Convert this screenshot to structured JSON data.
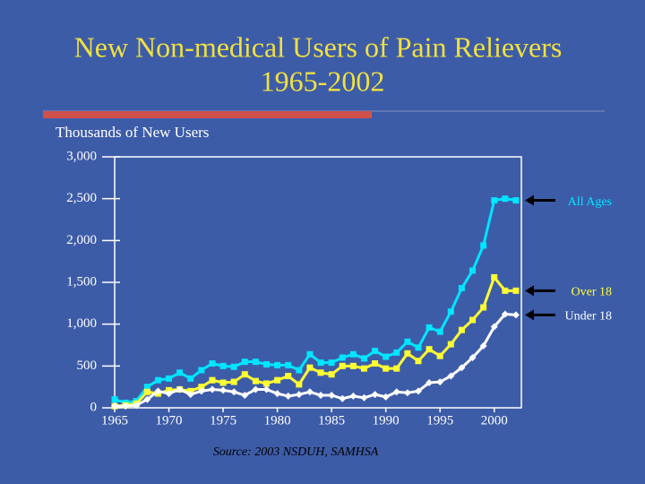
{
  "chart_data": {
    "type": "line",
    "title": "New Non-medical Users of Pain Relievers",
    "subtitle": "1965-2002",
    "y_label": "Thousands of New Users",
    "source": "Source: 2003 NSDUH, SAMHSA",
    "x": [
      1965,
      1966,
      1967,
      1968,
      1969,
      1970,
      1971,
      1972,
      1973,
      1974,
      1975,
      1976,
      1977,
      1978,
      1979,
      1980,
      1981,
      1982,
      1983,
      1984,
      1985,
      1986,
      1987,
      1988,
      1989,
      1990,
      1991,
      1992,
      1993,
      1994,
      1995,
      1996,
      1997,
      1998,
      1999,
      2000,
      2001,
      2002
    ],
    "series": [
      {
        "name": "All Ages",
        "color": "#00e5ff",
        "marker": "square",
        "values": [
          100,
          60,
          80,
          250,
          330,
          350,
          420,
          350,
          450,
          530,
          500,
          490,
          550,
          550,
          520,
          510,
          510,
          450,
          640,
          540,
          540,
          600,
          640,
          590,
          680,
          610,
          660,
          790,
          720,
          960,
          910,
          1150,
          1430,
          1640,
          1940,
          2480,
          2500,
          2480
        ]
      },
      {
        "name": "Over 18",
        "color": "#ffff33",
        "marker": "square",
        "values": [
          20,
          30,
          50,
          190,
          170,
          210,
          220,
          200,
          250,
          330,
          300,
          310,
          400,
          320,
          290,
          330,
          380,
          280,
          480,
          420,
          400,
          500,
          500,
          470,
          530,
          470,
          470,
          650,
          560,
          700,
          620,
          760,
          930,
          1050,
          1200,
          1560,
          1400,
          1400
        ]
      },
      {
        "name": "Under 18",
        "color": "#ffffff",
        "marker": "diamond",
        "values": [
          20,
          20,
          30,
          100,
          200,
          170,
          220,
          160,
          200,
          220,
          210,
          190,
          150,
          220,
          220,
          170,
          140,
          160,
          190,
          150,
          150,
          110,
          140,
          120,
          160,
          130,
          190,
          180,
          200,
          300,
          310,
          380,
          480,
          600,
          740,
          970,
          1120,
          1110
        ]
      }
    ],
    "xlim": [
      1965,
      2002.5
    ],
    "xticks": [
      1965,
      1970,
      1975,
      1980,
      1985,
      1990,
      1995,
      2000
    ],
    "ylim": [
      0,
      3000
    ],
    "yticks": [
      0,
      {
        "value": 500,
        "label": "500"
      },
      {
        "value": 1000,
        "label": "1,000"
      },
      {
        "value": 1500,
        "label": "1,500"
      },
      {
        "value": 2000,
        "label": "2,000"
      },
      {
        "value": 2500,
        "label": "2,500"
      },
      {
        "value": 3000,
        "label": "3,000"
      }
    ]
  }
}
